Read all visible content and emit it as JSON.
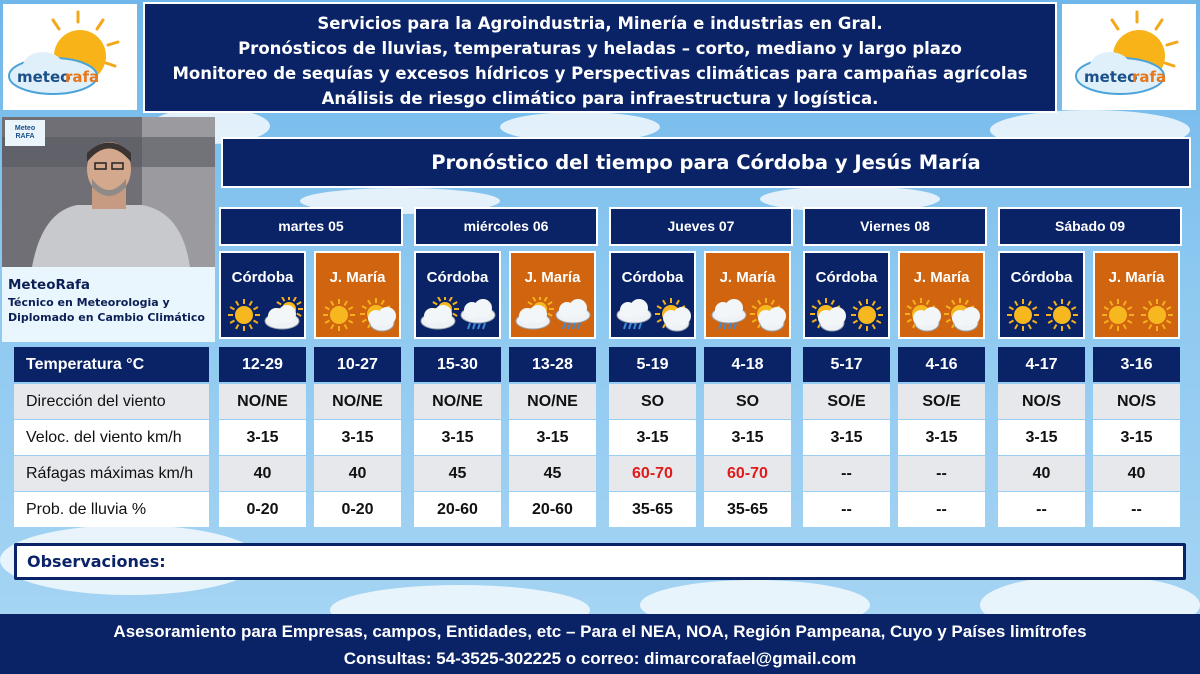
{
  "header": {
    "lines": [
      "Servicios para la Agroindustria, Minería e industrias en Gral.",
      "Pronósticos de lluvias, temperaturas y heladas – corto, mediano y largo plazo",
      "Monitoreo de sequías y excesos hídricos y Perspectivas climáticas para campañas agrícolas",
      "Análisis de riesgo climático para infraestructura y logística."
    ]
  },
  "brand": {
    "logo_text_a": "meteo",
    "logo_text_b": "rafa",
    "watermark": "Meteo RAFA"
  },
  "presenter": {
    "name": "MeteoRafa",
    "desc_1": "Técnico en Meteorologia y",
    "desc_2": "Diplomado en Cambio Climático"
  },
  "title": "Pronóstico del tiempo para Córdoba y Jesús María",
  "days": [
    "martes 05",
    "miércoles 06",
    "Jueves 07",
    "Viernes 08",
    "Sábado 09"
  ],
  "cities": [
    "Córdoba",
    "J. María",
    "Córdoba",
    "J. María",
    "Córdoba",
    "J. María",
    "Córdoba",
    "J. María",
    "Córdoba",
    "J. María"
  ],
  "city_icons": [
    [
      "sun-icon",
      "cloudy-icon"
    ],
    [
      "sun-icon",
      "partly-cloudy-icon"
    ],
    [
      "cloudy-icon",
      "rain-cloud-icon"
    ],
    [
      "cloudy-icon",
      "rain-cloud-icon"
    ],
    [
      "rain-cloud-icon",
      "partly-cloudy-icon"
    ],
    [
      "rain-cloud-icon",
      "partly-cloudy-icon"
    ],
    [
      "partly-cloudy-icon",
      "sun-icon"
    ],
    [
      "partly-cloudy-icon",
      "partly-cloudy-icon"
    ],
    [
      "sun-icon",
      "sun-icon"
    ],
    [
      "sun-icon",
      "sun-icon"
    ]
  ],
  "rows": [
    {
      "label": "Temperatura °C",
      "values": [
        "12-29",
        "10-27",
        "15-30",
        "13-28",
        "5-19",
        "4-18",
        "5-17",
        "4-16",
        "4-17",
        "3-16"
      ]
    },
    {
      "label": "Dirección del viento",
      "values": [
        "NO/NE",
        "NO/NE",
        "NO/NE",
        "NO/NE",
        "SO",
        "SO",
        "SO/E",
        "SO/E",
        "NO/S",
        "NO/S"
      ]
    },
    {
      "label": " Veloc. del viento km/h",
      "values": [
        "3-15",
        "3-15",
        "3-15",
        "3-15",
        "3-15",
        "3-15",
        "3-15",
        "3-15",
        "3-15",
        "3-15"
      ]
    },
    {
      "label": "Ráfagas máximas km/h",
      "values": [
        "40",
        "40",
        "45",
        "45",
        "60-70",
        "60-70",
        "--",
        "--",
        "40",
        "40"
      ]
    },
    {
      "label": "Prob. de lluvia %",
      "values": [
        "0-20",
        "0-20",
        "20-60",
        "20-60",
        "35-65",
        "35-65",
        "--",
        "--",
        "--",
        "--"
      ]
    }
  ],
  "highlight_color": "#e01b1b",
  "observaciones_label": "Observaciones:",
  "footer": {
    "line1": "Asesoramiento para Empresas, campos, Entidades, etc – Para el  NEA, NOA, Región Pampeana, Cuyo y Países limítrofes",
    "line2": "Consultas: 54-3525-302225 o correo: dimarcorafael@gmail.com"
  }
}
